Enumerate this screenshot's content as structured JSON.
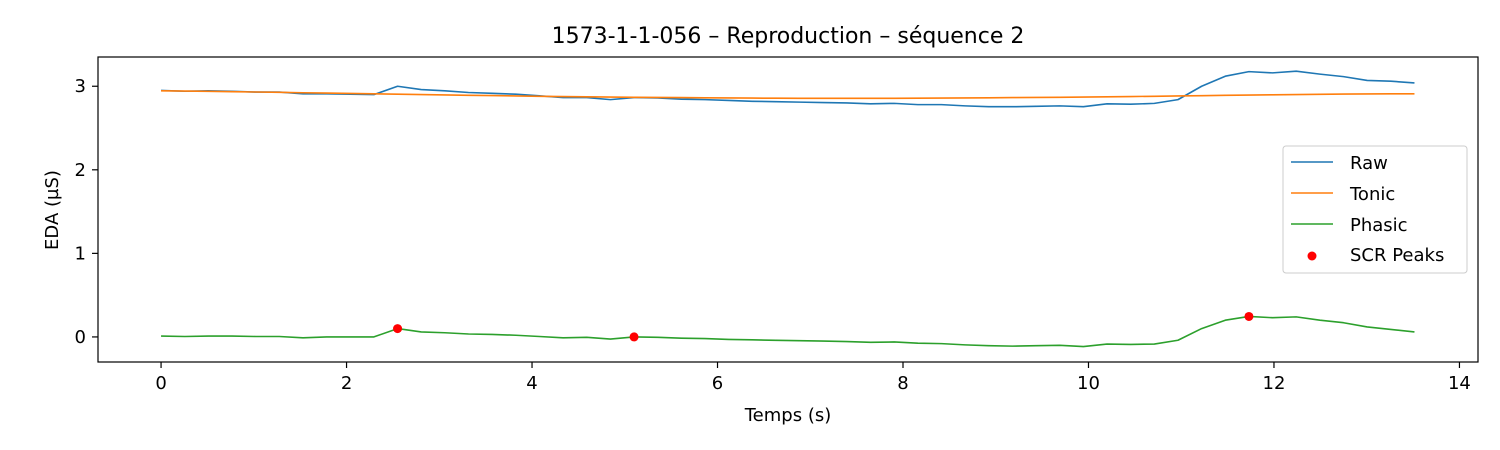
{
  "chart_data": {
    "type": "line",
    "title": "1573-1-1-056 – Reproduction – séquence 2",
    "xlabel": "Temps (s)",
    "ylabel": "EDA (µS)",
    "xlim": [
      -0.68,
      14.2
    ],
    "ylim": [
      -0.3,
      3.35
    ],
    "xticks": [
      0,
      2,
      4,
      6,
      8,
      10,
      12,
      14
    ],
    "yticks": [
      0,
      1,
      2,
      3
    ],
    "grid": false,
    "legend_position": "center-right",
    "x": [
      0,
      0.255,
      0.51,
      0.765,
      1.02,
      1.275,
      1.53,
      1.785,
      2.04,
      2.295,
      2.55,
      2.805,
      3.06,
      3.315,
      3.57,
      3.825,
      4.08,
      4.335,
      4.59,
      4.845,
      5.1,
      5.355,
      5.61,
      5.865,
      6.12,
      6.375,
      6.63,
      6.885,
      7.14,
      7.395,
      7.65,
      7.905,
      8.16,
      8.415,
      8.67,
      8.925,
      9.18,
      9.435,
      9.69,
      9.945,
      10.2,
      10.455,
      10.71,
      10.965,
      11.22,
      11.475,
      11.73,
      11.985,
      12.24,
      12.495,
      12.75,
      13.005,
      13.26,
      13.515
    ],
    "series": [
      {
        "name": "Raw",
        "color": "#1f77b4",
        "values": [
          2.95,
          2.94,
          2.945,
          2.94,
          2.93,
          2.93,
          2.91,
          2.91,
          2.905,
          2.9,
          3.0,
          2.96,
          2.945,
          2.925,
          2.915,
          2.905,
          2.885,
          2.865,
          2.865,
          2.84,
          2.865,
          2.86,
          2.845,
          2.84,
          2.83,
          2.82,
          2.815,
          2.81,
          2.805,
          2.8,
          2.79,
          2.795,
          2.78,
          2.78,
          2.765,
          2.755,
          2.755,
          2.76,
          2.765,
          2.755,
          2.79,
          2.785,
          2.795,
          2.84,
          3.0,
          3.12,
          3.175,
          3.16,
          3.18,
          3.145,
          3.115,
          3.07,
          3.06,
          3.04
        ]
      },
      {
        "name": "Tonic",
        "color": "#ff7f0e",
        "values": [
          2.945,
          2.942,
          2.939,
          2.935,
          2.931,
          2.927,
          2.922,
          2.918,
          2.914,
          2.909,
          2.905,
          2.9,
          2.896,
          2.892,
          2.888,
          2.884,
          2.88,
          2.877,
          2.874,
          2.871,
          2.868,
          2.866,
          2.864,
          2.862,
          2.86,
          2.858,
          2.857,
          2.856,
          2.855,
          2.855,
          2.855,
          2.856,
          2.857,
          2.858,
          2.86,
          2.862,
          2.864,
          2.866,
          2.868,
          2.871,
          2.874,
          2.877,
          2.88,
          2.884,
          2.887,
          2.891,
          2.894,
          2.898,
          2.901,
          2.904,
          2.906,
          2.908,
          2.909,
          2.91
        ]
      },
      {
        "name": "Phasic",
        "color": "#2ca02c",
        "values": [
          0.01,
          0.005,
          0.01,
          0.01,
          0.005,
          0.005,
          -0.01,
          0.0,
          0.0,
          0.0,
          0.1,
          0.06,
          0.05,
          0.035,
          0.03,
          0.02,
          0.005,
          -0.01,
          -0.005,
          -0.025,
          0.0,
          -0.005,
          -0.015,
          -0.02,
          -0.03,
          -0.035,
          -0.04,
          -0.045,
          -0.05,
          -0.055,
          -0.065,
          -0.06,
          -0.075,
          -0.08,
          -0.095,
          -0.105,
          -0.11,
          -0.105,
          -0.1,
          -0.115,
          -0.085,
          -0.09,
          -0.085,
          -0.04,
          0.1,
          0.2,
          0.245,
          0.23,
          0.24,
          0.2,
          0.17,
          0.12,
          0.09,
          0.06
        ]
      }
    ],
    "peaks": {
      "name": "SCR Peaks",
      "color": "#ff0000",
      "x": [
        2.55,
        5.1,
        11.73
      ],
      "y": [
        0.1,
        0.0,
        0.245
      ]
    }
  }
}
